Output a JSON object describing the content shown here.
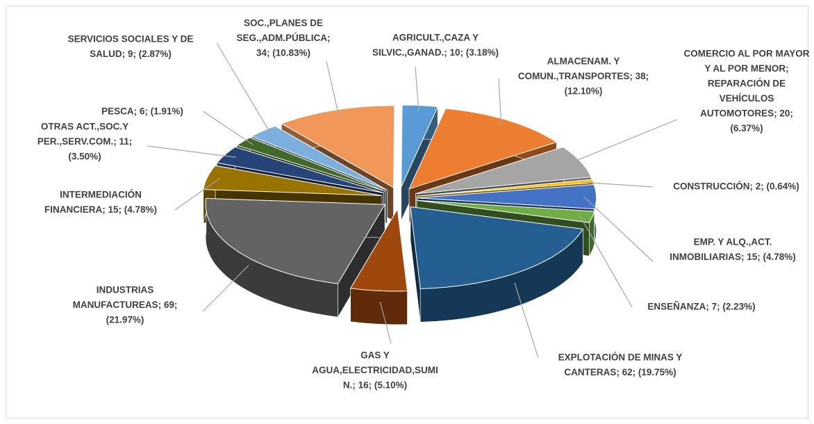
{
  "chart_data": {
    "type": "pie",
    "exploded": true,
    "three_d": true,
    "categories": [
      "AGRICULT.,CAZA Y SILVIC.,GANAD.",
      "ALMACENAM. Y COMUN.,TRANSPORTES",
      "COMERCIO AL POR MAYOR Y AL POR MENOR; REPARACIÓN DE VEHÍCULOS AUTOMOTORES",
      "CONSTRUCCIÓN",
      "EMP. Y ALQ.,ACT. INMOBILIARIAS",
      "ENSEÑANZA",
      "EXPLOTACIÓN DE MINAS Y CANTERAS",
      "GAS Y AGUA,ELECTRICIDAD,SUMIN.",
      "INDUSTRIAS MANUFACTUREAS",
      "INTERMEDIACIÓN FINANCIERA",
      "OTRAS ACT.,SOC.Y PER.,SERV.COM.",
      "PESCA",
      "SERVICIOS SOCIALES Y DE SALUD",
      "SOC.,PLANES DE SEG.,ADM.PÚBLICA"
    ],
    "values": [
      10,
      38,
      20,
      2,
      15,
      7,
      62,
      16,
      69,
      15,
      11,
      6,
      9,
      34
    ],
    "value_labels": [
      [
        "AGRICULT.,CAZA Y",
        "SILVIC.,GANAD.; 10; (3.18%)"
      ],
      [
        "ALMACENAM. Y",
        "COMUN.,TRANSPORTES; 38;",
        "(12.10%)"
      ],
      [
        "COMERCIO AL POR MAYOR",
        "Y AL POR MENOR;",
        "REPARACIÓN DE",
        "VEHÍCULOS",
        "AUTOMOTORES; 20;",
        "(6.37%)"
      ],
      [
        "CONSTRUCCIÓN; 2; (0.64%)"
      ],
      [
        "EMP. Y ALQ.,ACT.",
        "INMOBILIARIAS; 15; (4.78%)"
      ],
      [
        "ENSEÑANZA; 7; (2.23%)"
      ],
      [
        "EXPLOTACIÓN DE MINAS Y",
        "CANTERAS; 62; (19.75%)"
      ],
      [
        "GAS Y",
        "AGUA,ELECTRICIDAD,SUMI",
        "N.; 16; (5.10%)"
      ],
      [
        "INDUSTRIAS",
        "MANUFACTUREAS; 69;",
        "(21.97%)"
      ],
      [
        "INTERMEDIACIÓN",
        "FINANCIERA; 15; (4.78%)"
      ],
      [
        "OTRAS ACT.,SOC.Y",
        "PER.,SERV.COM.; 11;",
        "(3.50%)"
      ],
      [
        "PESCA; 6; (1.91%)"
      ],
      [
        "SERVICIOS SOCIALES Y DE",
        "SALUD; 9; (2.87%)"
      ],
      [
        "SOC.,PLANES DE",
        "SEG.,ADM.PÚBLICA;",
        "34; (10.83%)"
      ]
    ],
    "colors": [
      "#5b9bd5",
      "#ed7d31",
      "#a5a5a5",
      "#ffc000",
      "#4472c4",
      "#70ad47",
      "#255e91",
      "#9e480e",
      "#636363",
      "#997300",
      "#264478",
      "#43682b",
      "#7cafdd",
      "#f1975a"
    ]
  }
}
